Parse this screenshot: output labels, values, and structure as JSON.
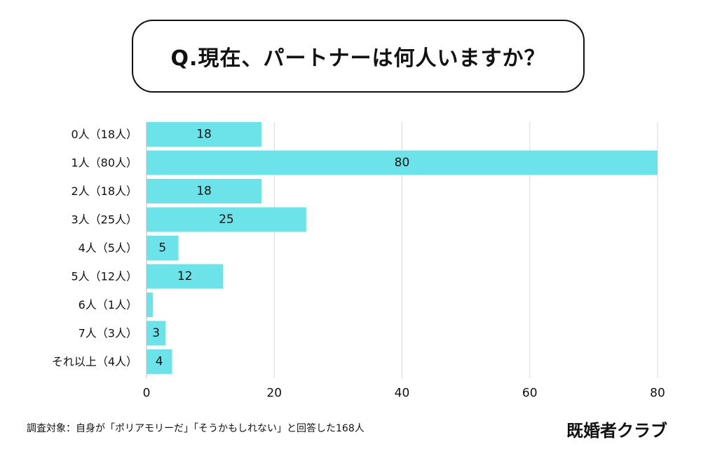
{
  "title": "Q.現在、パートナーは何人いますか？",
  "footnote": "調査対象：自身が「ポリアモリーだ」「そうかもしれない」と回答した168人",
  "brand": "既婚者クラブ",
  "colors": {
    "bar": "#6ce3e8",
    "grid": "#d9d9d9",
    "text": "#111111"
  },
  "chart_data": {
    "type": "bar",
    "orientation": "horizontal",
    "categories": [
      "0人（18人）",
      "1人（80人）",
      "2人（18人）",
      "3人（25人）",
      "4人（5人）",
      "5人（12人）",
      "6人（1人）",
      "7人（3人）",
      "それ以上（4人）"
    ],
    "values": [
      18,
      80,
      18,
      25,
      5,
      12,
      1,
      3,
      4
    ],
    "data_labels": [
      "18",
      "80",
      "18",
      "25",
      "5",
      "12",
      "",
      "3",
      "4"
    ],
    "xlim": [
      0,
      80
    ],
    "xticks": [
      0,
      20,
      40,
      60,
      80
    ],
    "xtick_labels": [
      "0",
      "20",
      "40",
      "60",
      "80"
    ],
    "grid": true,
    "legend": false
  }
}
